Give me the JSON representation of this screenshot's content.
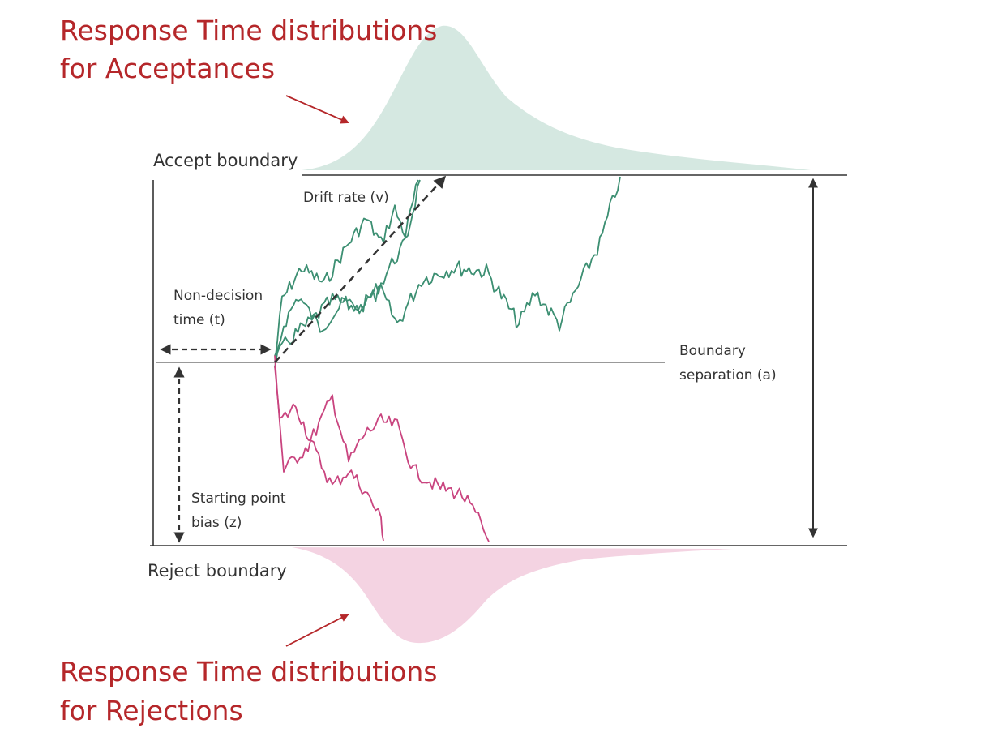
{
  "titles": {
    "acceptances": [
      "Response Time distributions",
      "for Acceptances"
    ],
    "rejections": [
      "Response Time distributions",
      "for Rejections"
    ]
  },
  "boundaries": {
    "accept": "Accept boundary",
    "reject": "Reject boundary"
  },
  "parameters": {
    "drift_rate": "Drift rate (v)",
    "non_decision": [
      "Non-decision",
      "time (t)"
    ],
    "boundary_separation": [
      "Boundary",
      "separation (a)"
    ],
    "starting_point": [
      "Starting point",
      "bias (z)"
    ]
  },
  "colors": {
    "title": "#b5272a",
    "accept_paths": "#3c8f72",
    "reject_paths": "#c9447f",
    "accept_distribution": "#d5e8e1",
    "reject_distribution": "#f4d3e2",
    "text": "#333333",
    "line": "#333333"
  }
}
